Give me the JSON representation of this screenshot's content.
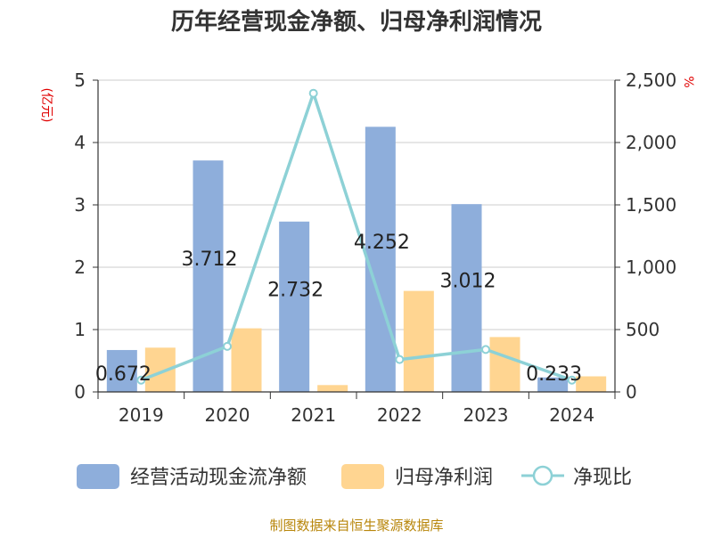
{
  "chart_data": {
    "type": "bar",
    "title": "历年经营现金净额、归母净利润情况",
    "categories": [
      "2019",
      "2020",
      "2021",
      "2022",
      "2023",
      "2024"
    ],
    "series": [
      {
        "name": "经营活动现金流净额",
        "kind": "bar",
        "axis": "left",
        "color": "#8eaedb",
        "values": [
          0.672,
          3.712,
          2.732,
          4.252,
          3.012,
          0.233
        ]
      },
      {
        "name": "归母净利润",
        "kind": "bar",
        "axis": "left",
        "color": "#ffd591",
        "values": [
          0.71,
          1.02,
          0.11,
          1.62,
          0.88,
          0.25
        ]
      },
      {
        "name": "净现比",
        "kind": "line",
        "axis": "right",
        "color": "#8dd1d6",
        "values": [
          95,
          365,
          2395,
          260,
          340,
          95
        ]
      }
    ],
    "data_labels": [
      "0.672",
      "3.712",
      "2.732",
      "4.252",
      "3.012",
      "0.233"
    ],
    "ylabel": "(亿元)",
    "y2label": "%",
    "ylim": [
      0,
      5
    ],
    "y2lim": [
      0,
      2500
    ],
    "y_ticks": [
      "0",
      "1",
      "2",
      "3",
      "4",
      "5"
    ],
    "y2_ticks": [
      "0",
      "500",
      "1,000",
      "1,500",
      "2,000",
      "2,500"
    ],
    "grid": true,
    "legend_position": "bottom"
  },
  "footer": {
    "source": "制图数据来自恒生聚源数据库"
  }
}
